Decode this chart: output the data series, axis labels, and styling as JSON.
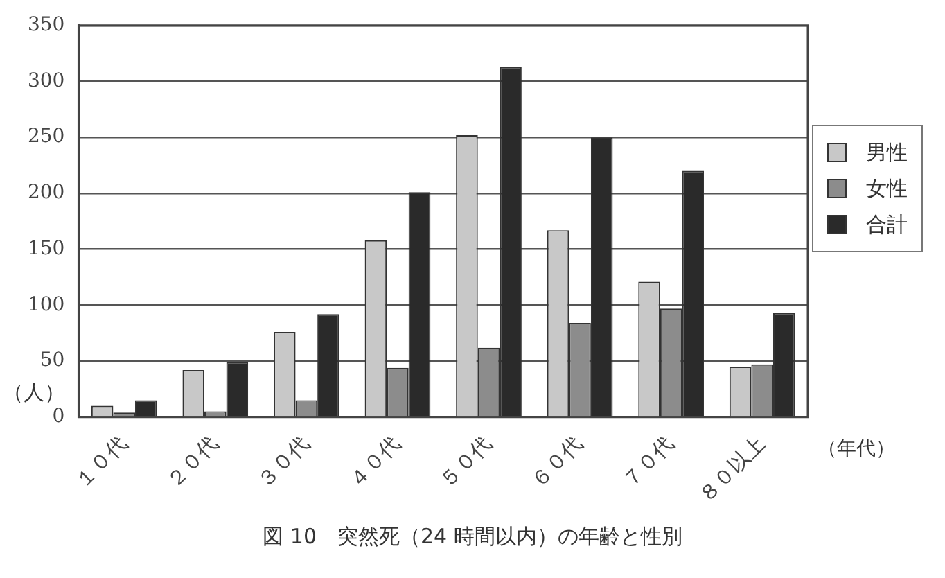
{
  "chart_data": {
    "type": "bar",
    "title": "図 10　突然死（24 時間以内）の年齢と性別",
    "xlabel": "（年代）",
    "ylabel": "（人）",
    "categories": [
      "１０代",
      "２０代",
      "３０代",
      "４０代",
      "５０代",
      "６０代",
      "７０代",
      "８０以上"
    ],
    "series": [
      {
        "name": "男性",
        "color": "#c8c8c8",
        "values": [
          10,
          42,
          76,
          158,
          252,
          167,
          121,
          45
        ]
      },
      {
        "name": "女性",
        "color": "#8c8c8c",
        "values": [
          4,
          5,
          15,
          44,
          62,
          84,
          97,
          47
        ]
      },
      {
        "name": "合計",
        "color": "#2a2a2a",
        "values": [
          15,
          49,
          92,
          201,
          313,
          250,
          220,
          93
        ]
      }
    ],
    "ylim": [
      0,
      350
    ],
    "yticks": [
      0,
      50,
      100,
      150,
      200,
      250,
      300,
      350
    ],
    "grid": "y",
    "legend": "right"
  }
}
